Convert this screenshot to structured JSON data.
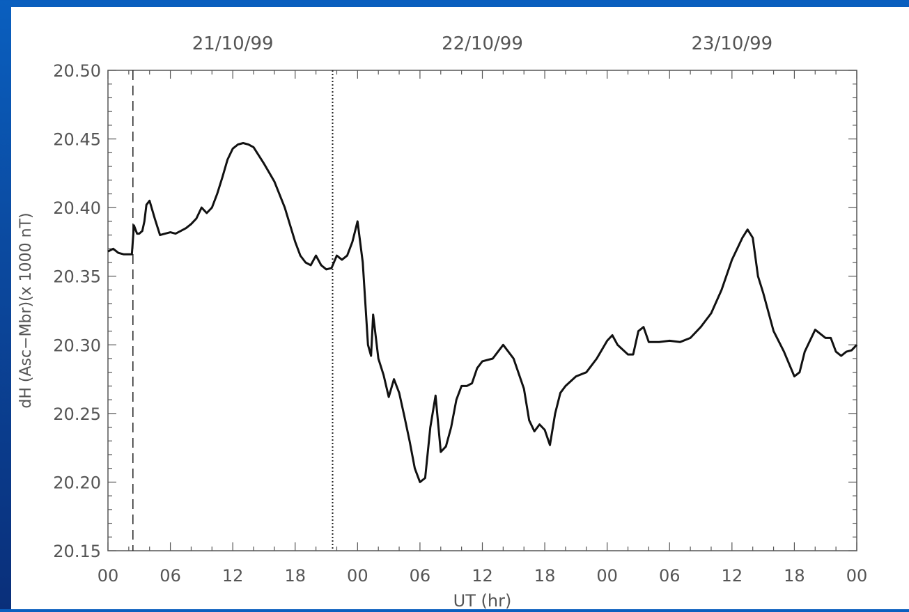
{
  "chart_data": {
    "type": "line",
    "title": "",
    "xlabel": "UT (hr)",
    "ylabel": "dH (Asc−Mbr)(x 1000 nT)",
    "date_labels": [
      "21/10/99",
      "22/10/99",
      "23/10/99"
    ],
    "x_tick_labels": [
      "00",
      "06",
      "12",
      "18",
      "00",
      "06",
      "12",
      "18",
      "00",
      "06",
      "12",
      "18",
      "00"
    ],
    "y_tick_labels": [
      "20.50",
      "20.45",
      "20.40",
      "20.35",
      "20.30",
      "20.25",
      "20.20",
      "20.15"
    ],
    "ylim": [
      20.15,
      20.5
    ],
    "xlim_hours": [
      0,
      72
    ],
    "grid": false,
    "markers": [
      {
        "style": "dashed",
        "x": "21/10/99 02:24 UT"
      },
      {
        "style": "dotted",
        "x": "21/10/99 21:36 UT"
      }
    ],
    "series": [
      {
        "x": [
          "21/10/99 00:00",
          "21/10/99 00:30",
          "21/10/99 01:00",
          "21/10/99 01:30",
          "21/10/99 02:00",
          "21/10/99 02:18",
          "21/10/99 02:30",
          "21/10/99 02:48",
          "21/10/99 03:00",
          "21/10/99 03:18",
          "21/10/99 03:30",
          "21/10/99 03:42",
          "21/10/99 04:00",
          "21/10/99 04:30",
          "21/10/99 05:00",
          "21/10/99 05:30",
          "21/10/99 06:00",
          "21/10/99 06:30",
          "21/10/99 07:00",
          "21/10/99 07:30",
          "21/10/99 08:00",
          "21/10/99 08:30",
          "21/10/99 09:00",
          "21/10/99 09:30",
          "21/10/99 10:00",
          "21/10/99 10:30",
          "21/10/99 11:00",
          "21/10/99 11:30",
          "21/10/99 12:00",
          "21/10/99 12:30",
          "21/10/99 13:00",
          "21/10/99 13:30",
          "21/10/99 14:00",
          "21/10/99 15:00",
          "21/10/99 16:00",
          "21/10/99 17:00",
          "21/10/99 18:00",
          "21/10/99 18:30",
          "21/10/99 19:00",
          "21/10/99 19:30",
          "21/10/99 20:00",
          "21/10/99 20:30",
          "21/10/99 21:00",
          "21/10/99 21:30",
          "21/10/99 22:00",
          "21/10/99 22:30",
          "21/10/99 23:00",
          "21/10/99 23:30",
          "22/10/99 00:00",
          "22/10/99 00:30",
          "22/10/99 01:00",
          "22/10/99 01:18",
          "22/10/99 01:30",
          "22/10/99 02:00",
          "22/10/99 02:30",
          "22/10/99 03:00",
          "22/10/99 03:30",
          "22/10/99 04:00",
          "22/10/99 04:30",
          "22/10/99 05:00",
          "22/10/99 05:30",
          "22/10/99 06:00",
          "22/10/99 06:30",
          "22/10/99 07:00",
          "22/10/99 07:30",
          "22/10/99 08:00",
          "22/10/99 08:30",
          "22/10/99 09:00",
          "22/10/99 09:30",
          "22/10/99 10:00",
          "22/10/99 10:30",
          "22/10/99 11:00",
          "22/10/99 11:30",
          "22/10/99 12:00",
          "22/10/99 13:00",
          "22/10/99 14:00",
          "22/10/99 15:00",
          "22/10/99 16:00",
          "22/10/99 16:30",
          "22/10/99 17:00",
          "22/10/99 17:30",
          "22/10/99 18:00",
          "22/10/99 18:30",
          "22/10/99 19:00",
          "22/10/99 19:30",
          "22/10/99 20:00",
          "22/10/99 21:00",
          "22/10/99 22:00",
          "22/10/99 23:00",
          "23/10/99 00:00",
          "23/10/99 00:30",
          "23/10/99 01:00",
          "23/10/99 02:00",
          "23/10/99 02:30",
          "23/10/99 03:00",
          "23/10/99 03:30",
          "23/10/99 04:00",
          "23/10/99 05:00",
          "23/10/99 06:00",
          "23/10/99 07:00",
          "23/10/99 08:00",
          "23/10/99 09:00",
          "23/10/99 10:00",
          "23/10/99 11:00",
          "23/10/99 12:00",
          "23/10/99 13:00",
          "23/10/99 13:30",
          "23/10/99 14:00",
          "23/10/99 14:30",
          "23/10/99 15:00",
          "23/10/99 16:00",
          "23/10/99 17:00",
          "23/10/99 18:00",
          "23/10/99 18:30",
          "23/10/99 19:00",
          "23/10/99 20:00",
          "23/10/99 21:00",
          "23/10/99 21:30",
          "23/10/99 22:00",
          "23/10/99 22:30",
          "23/10/99 23:00",
          "23/10/99 23:30",
          "24/10/99 00:00"
        ],
        "y": [
          20.368,
          20.37,
          20.367,
          20.366,
          20.366,
          20.366,
          20.387,
          20.381,
          20.381,
          20.383,
          20.39,
          20.402,
          20.405,
          20.392,
          20.38,
          20.381,
          20.382,
          20.381,
          20.383,
          20.385,
          20.388,
          20.392,
          20.4,
          20.396,
          20.4,
          20.41,
          20.422,
          20.435,
          20.443,
          20.446,
          20.447,
          20.446,
          20.444,
          20.432,
          20.419,
          20.4,
          20.375,
          20.365,
          20.36,
          20.358,
          20.365,
          20.358,
          20.355,
          20.356,
          20.365,
          20.362,
          20.365,
          20.375,
          20.39,
          20.36,
          20.3,
          20.292,
          20.322,
          20.29,
          20.278,
          20.262,
          20.275,
          20.265,
          20.248,
          20.23,
          20.21,
          20.2,
          20.203,
          20.24,
          20.263,
          20.222,
          20.226,
          20.24,
          20.26,
          20.27,
          20.27,
          20.272,
          20.283,
          20.288,
          20.29,
          20.3,
          20.29,
          20.268,
          20.245,
          20.237,
          20.242,
          20.238,
          20.227,
          20.25,
          20.265,
          20.27,
          20.277,
          20.28,
          20.29,
          20.303,
          20.307,
          20.3,
          20.293,
          20.293,
          20.31,
          20.313,
          20.302,
          20.302,
          20.303,
          20.302,
          20.305,
          20.313,
          20.323,
          20.34,
          20.362,
          20.378,
          20.384,
          20.378,
          20.35,
          20.338,
          20.31,
          20.295,
          20.277,
          20.28,
          20.295,
          20.311,
          20.305,
          20.305,
          20.295,
          20.292,
          20.295,
          20.296,
          20.3
        ]
      }
    ]
  }
}
